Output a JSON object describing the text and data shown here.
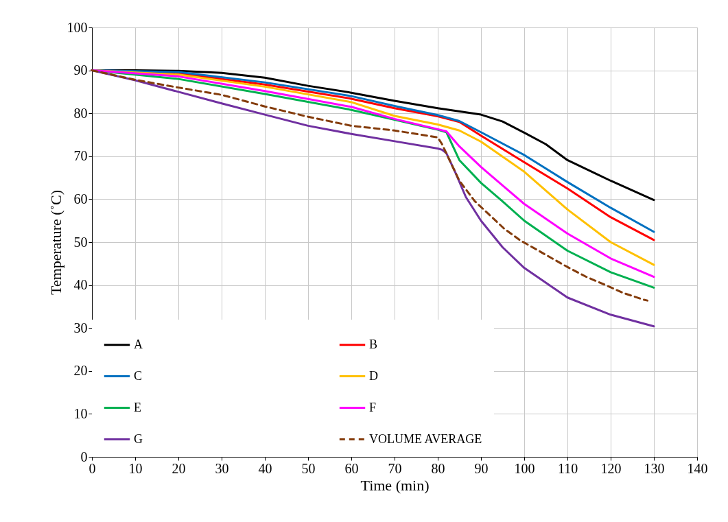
{
  "chart_data": {
    "type": "line",
    "xlabel": "Time (min)",
    "ylabel": "Temperature (˚C)",
    "xlim": [
      0,
      140
    ],
    "xticks": [
      0,
      10,
      20,
      30,
      40,
      50,
      60,
      70,
      80,
      90,
      100,
      110,
      120,
      130,
      140
    ],
    "ylim": [
      0,
      100
    ],
    "yticks": [
      0,
      10,
      20,
      30,
      40,
      50,
      60,
      70,
      80,
      90,
      100
    ],
    "grid": true,
    "legend": "bottom left",
    "marker": "none",
    "line_style": "solid",
    "series": [
      {
        "name": "A",
        "color": "#000000",
        "x": [
          0,
          10,
          20,
          30,
          40,
          50,
          60,
          70,
          80,
          90,
          95,
          100,
          105,
          110,
          120,
          130
        ],
        "values": [
          90,
          90.0,
          89.9,
          89.4,
          88.3,
          86.4,
          84.8,
          82.9,
          81.2,
          79.7,
          78.1,
          75.5,
          72.8,
          69.1,
          64.3,
          59.8
        ]
      },
      {
        "name": "B",
        "color": "#ff0000",
        "x": [
          0,
          20,
          40,
          60,
          70,
          80,
          85,
          90,
          100,
          110,
          120,
          130
        ],
        "values": [
          90,
          89.3,
          86.7,
          83.4,
          81.2,
          79.3,
          78.0,
          74.8,
          68.6,
          62.5,
          55.8,
          50.5
        ]
      },
      {
        "name": "C",
        "color": "#0070c0",
        "x": [
          0,
          20,
          40,
          60,
          70,
          80,
          85,
          90,
          100,
          110,
          120,
          130
        ],
        "values": [
          90,
          89.6,
          87.2,
          84.0,
          81.7,
          79.6,
          78.2,
          75.6,
          70.3,
          64.0,
          58.0,
          52.4
        ]
      },
      {
        "name": "D",
        "color": "#ffc000",
        "x": [
          0,
          20,
          40,
          60,
          70,
          80,
          85,
          90,
          100,
          110,
          120,
          130
        ],
        "values": [
          90,
          89.0,
          86.2,
          82.6,
          79.4,
          77.4,
          76.0,
          73.4,
          66.4,
          57.6,
          50.0,
          44.7
        ]
      },
      {
        "name": "E",
        "color": "#00b050",
        "x": [
          0,
          20,
          40,
          60,
          70,
          80,
          82,
          85,
          90,
          95,
          100,
          110,
          120,
          130
        ],
        "values": [
          90,
          88.0,
          84.5,
          80.8,
          78.5,
          76.2,
          75.6,
          69.1,
          63.8,
          59.5,
          55.0,
          48.0,
          43.0,
          39.4
        ]
      },
      {
        "name": "F",
        "color": "#ff00ff",
        "x": [
          0,
          20,
          40,
          60,
          70,
          80,
          82,
          85,
          90,
          95,
          100,
          110,
          120,
          130
        ],
        "values": [
          90,
          88.6,
          85.2,
          81.5,
          78.7,
          76.3,
          75.8,
          72.3,
          67.5,
          63.2,
          58.9,
          52.0,
          46.2,
          41.9
        ]
      },
      {
        "name": "G",
        "color": "#7030a0",
        "x": [
          0,
          10,
          20,
          30,
          40,
          50,
          60,
          70,
          80,
          81,
          82,
          84,
          86.5,
          90,
          95,
          100,
          110,
          120,
          130
        ],
        "values": [
          90,
          87.7,
          85.0,
          82.3,
          79.7,
          77.1,
          75.2,
          73.5,
          71.8,
          71.5,
          70.7,
          66.4,
          60.5,
          55.0,
          48.8,
          44.0,
          37.1,
          33.1,
          30.4
        ]
      },
      {
        "name": "VOLUME AVERAGE",
        "color": "#843c0c",
        "line_style": "dashed",
        "x": [
          0,
          10,
          20,
          30,
          40,
          50,
          60,
          70,
          80,
          81,
          83,
          85,
          88.6,
          91.7,
          95.4,
          99.1,
          102.8,
          107,
          110.2,
          114.4,
          118.6,
          122.8,
          127.6,
          128.5
        ],
        "values": [
          90,
          87.8,
          86.0,
          84.3,
          81.6,
          79.2,
          77.1,
          76.0,
          74.4,
          72.8,
          68.5,
          64.3,
          59.5,
          56.6,
          53.1,
          50.4,
          48.3,
          45.9,
          44.1,
          41.9,
          40.1,
          38.2,
          36.6,
          36.4
        ]
      }
    ]
  }
}
